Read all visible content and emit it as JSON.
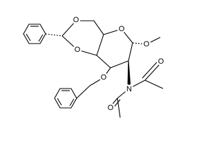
{
  "atoms": [
    "O",
    "O",
    "O",
    "O",
    "O",
    "N",
    "O",
    "O"
  ]
}
